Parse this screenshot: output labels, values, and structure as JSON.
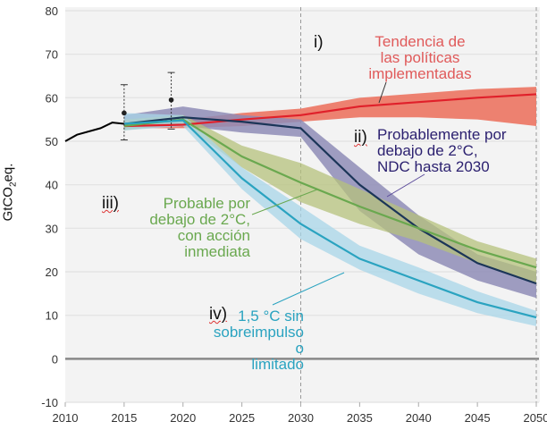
{
  "chart_data": {
    "type": "line",
    "ylabel": "GtCO2eq.",
    "xlim": [
      2010,
      2050
    ],
    "ylim": [
      -10,
      80
    ],
    "xticks": [
      "2010",
      "2015",
      "2020",
      "2025",
      "2030",
      "2035",
      "2040",
      "2045",
      "2050"
    ],
    "yticks": [
      "-10",
      "0",
      "10",
      "20",
      "30",
      "40",
      "50",
      "60",
      "70",
      "80"
    ],
    "grid": true,
    "vlines": [
      2030,
      2050
    ],
    "historical": {
      "color": "#000000",
      "x": [
        2010,
        2011,
        2013,
        2014,
        2015
      ],
      "y": [
        50,
        51.5,
        53,
        54.3,
        54
      ]
    },
    "error_bars": [
      {
        "x": 2015,
        "y": 56.5,
        "low": 50.3,
        "high": 63
      },
      {
        "x": 2019,
        "y": 59.5,
        "low": 52.8,
        "high": 65.8
      }
    ],
    "series": [
      {
        "id": "i",
        "number": "i)",
        "name": "Tendencia de las políticas implementadas",
        "color": "#e0202a",
        "band": "#ec7a68",
        "x": [
          2015,
          2020,
          2025,
          2030,
          2035,
          2040,
          2045,
          2050
        ],
        "y": [
          53.5,
          53.8,
          55,
          56,
          58,
          59,
          60,
          60.8
        ],
        "low": [
          53,
          53,
          53.5,
          54.5,
          55.5,
          55.5,
          55,
          53.5
        ],
        "high": [
          54,
          55,
          56.5,
          57.5,
          60,
          61,
          62,
          62.5
        ]
      },
      {
        "id": "ii",
        "number": "ii)",
        "name": "Probablemente por debajo de 2°C, NDC hasta 2030",
        "color": "#1b3558",
        "band": "#8e8cb6",
        "x": [
          2015,
          2020,
          2025,
          2030,
          2035,
          2040,
          2045,
          2050
        ],
        "y": [
          54,
          55.5,
          54.5,
          53,
          40,
          30,
          22,
          17.3
        ],
        "low": [
          53,
          53.5,
          52,
          51,
          34,
          24,
          18,
          14
        ],
        "high": [
          56,
          58,
          56,
          55,
          44,
          33,
          24,
          20
        ]
      },
      {
        "id": "iii",
        "number": "iii)",
        "name": "Probable por debajo de 2°C, con acción inmediata",
        "color": "#6aa84f",
        "band": "#b5c27c",
        "x": [
          2015,
          2020,
          2025,
          2030,
          2035,
          2040,
          2045,
          2050
        ],
        "y": [
          53.5,
          55,
          46.5,
          40.5,
          35,
          30,
          25,
          21
        ],
        "low": [
          52.5,
          54,
          44,
          36,
          31,
          27,
          22,
          17.5
        ],
        "high": [
          55,
          56,
          49,
          45,
          39,
          33,
          27,
          23
        ]
      },
      {
        "id": "iv",
        "number": "iv)",
        "name": "1,5 °C sin sobreimpulso o limitado",
        "color": "#2aa3c0",
        "band": "#a8d5e8",
        "x": [
          2015,
          2020,
          2025,
          2030,
          2035,
          2040,
          2045,
          2050
        ],
        "y": [
          54,
          54.8,
          41.5,
          31,
          23,
          18,
          13,
          9.5
        ],
        "low": [
          52.5,
          53.5,
          39,
          27.5,
          20.5,
          15,
          10.5,
          7.5
        ],
        "high": [
          56.5,
          56,
          44,
          35,
          26,
          21,
          15.5,
          11
        ]
      }
    ]
  },
  "labels": {
    "i": {
      "number": "i)",
      "lines": [
        "Tendencia de",
        "las políticas",
        "implementadas"
      ]
    },
    "ii": {
      "number": "ii)",
      "lines": [
        "Probablemente por",
        "debajo de 2°C,",
        "NDC hasta 2030"
      ]
    },
    "iii": {
      "number": "iii)",
      "lines": [
        "Probable por",
        "debajo de 2°C,",
        "con acción",
        "inmediata"
      ]
    },
    "iv": {
      "number": "iv)",
      "lines": [
        "1,5 °C sin",
        "sobreimpulso o",
        "limitado"
      ]
    }
  }
}
